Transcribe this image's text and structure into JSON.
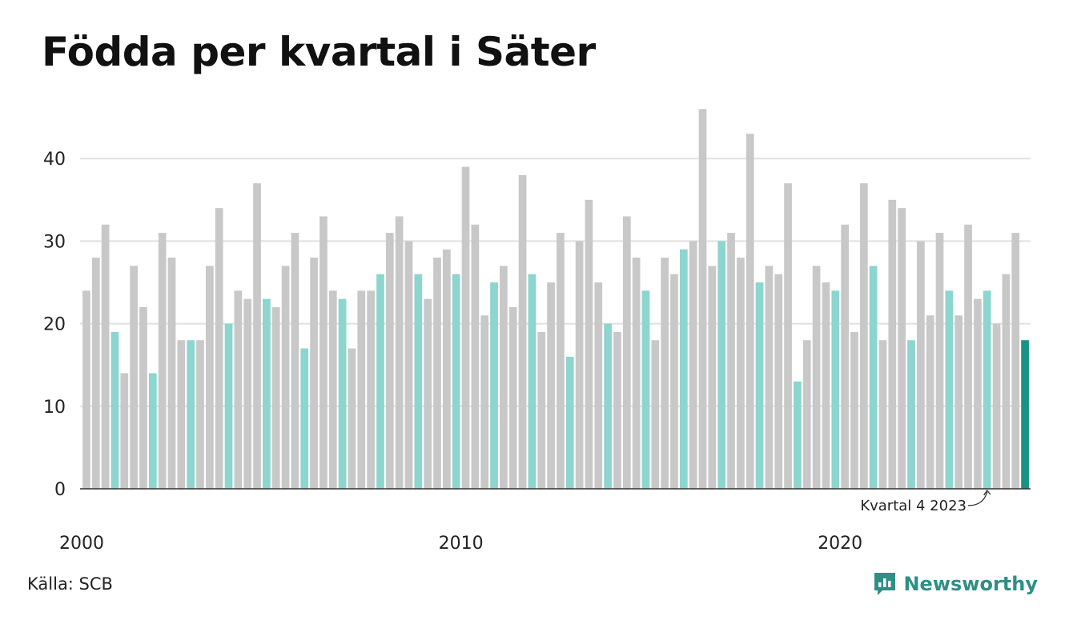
{
  "title": "Födda per kvartal i Säter",
  "source": "Källa: SCB",
  "brand": "Newsworthy",
  "colors": {
    "default": "#c8c8c8",
    "highlight": "#8dd5cf",
    "current": "#1a9186",
    "brand": "#2f8f86"
  },
  "chart_data": {
    "type": "bar",
    "title": "Födda per kvartal i Säter",
    "ylim": [
      0,
      46
    ],
    "yticks": [
      0,
      10,
      20,
      30,
      40
    ],
    "x_ticks": [
      "2000",
      "2010",
      "2020"
    ],
    "grid": true,
    "annotation": {
      "text": "Kvartal 4 2023",
      "target_index": 95
    },
    "categories": [
      "2000 K1",
      "2000 K2",
      "2000 K3",
      "2000 K4",
      "2001 K1",
      "2001 K2",
      "2001 K3",
      "2001 K4",
      "2002 K1",
      "2002 K2",
      "2002 K3",
      "2002 K4",
      "2003 K1",
      "2003 K2",
      "2003 K3",
      "2003 K4",
      "2004 K1",
      "2004 K2",
      "2004 K3",
      "2004 K4",
      "2005 K1",
      "2005 K2",
      "2005 K3",
      "2005 K4",
      "2006 K1",
      "2006 K2",
      "2006 K3",
      "2006 K4",
      "2007 K1",
      "2007 K2",
      "2007 K3",
      "2007 K4",
      "2008 K1",
      "2008 K2",
      "2008 K3",
      "2008 K4",
      "2009 K1",
      "2009 K2",
      "2009 K3",
      "2009 K4",
      "2010 K1",
      "2010 K2",
      "2010 K3",
      "2010 K4",
      "2011 K1",
      "2011 K2",
      "2011 K3",
      "2011 K4",
      "2012 K1",
      "2012 K2",
      "2012 K3",
      "2012 K4",
      "2013 K1",
      "2013 K2",
      "2013 K3",
      "2013 K4",
      "2014 K1",
      "2014 K2",
      "2014 K3",
      "2014 K4",
      "2015 K1",
      "2015 K2",
      "2015 K3",
      "2015 K4",
      "2016 K1",
      "2016 K2",
      "2016 K3",
      "2016 K4",
      "2017 K1",
      "2017 K2",
      "2017 K3",
      "2017 K4",
      "2018 K1",
      "2018 K2",
      "2018 K3",
      "2018 K4",
      "2019 K1",
      "2019 K2",
      "2019 K3",
      "2019 K4",
      "2020 K1",
      "2020 K2",
      "2020 K3",
      "2020 K4",
      "2021 K1",
      "2021 K2",
      "2021 K3",
      "2021 K4",
      "2022 K1",
      "2022 K2",
      "2022 K3",
      "2022 K4",
      "2023 K1",
      "2023 K2",
      "2023 K3",
      "2023 K4",
      "2024 K1",
      "2024 K2",
      "2024 K3",
      "2024 K4"
    ],
    "values": [
      24,
      28,
      32,
      19,
      14,
      27,
      22,
      14,
      31,
      28,
      18,
      18,
      18,
      27,
      34,
      20,
      24,
      23,
      37,
      23,
      22,
      27,
      31,
      17,
      28,
      33,
      24,
      23,
      17,
      24,
      24,
      26,
      31,
      33,
      30,
      26,
      23,
      28,
      29,
      26,
      39,
      32,
      21,
      25,
      27,
      22,
      38,
      26,
      19,
      25,
      31,
      16,
      30,
      35,
      25,
      20,
      19,
      33,
      28,
      24,
      18,
      28,
      26,
      29,
      30,
      46,
      27,
      30,
      31,
      28,
      43,
      25,
      27,
      26,
      37,
      13,
      18,
      27,
      25,
      24,
      32,
      19,
      37,
      27,
      18,
      35,
      34,
      18,
      30,
      21,
      31,
      24,
      21,
      32,
      23,
      24,
      20,
      26,
      31,
      18
    ],
    "highlight_quarter": "K4",
    "current_index": 99
  }
}
